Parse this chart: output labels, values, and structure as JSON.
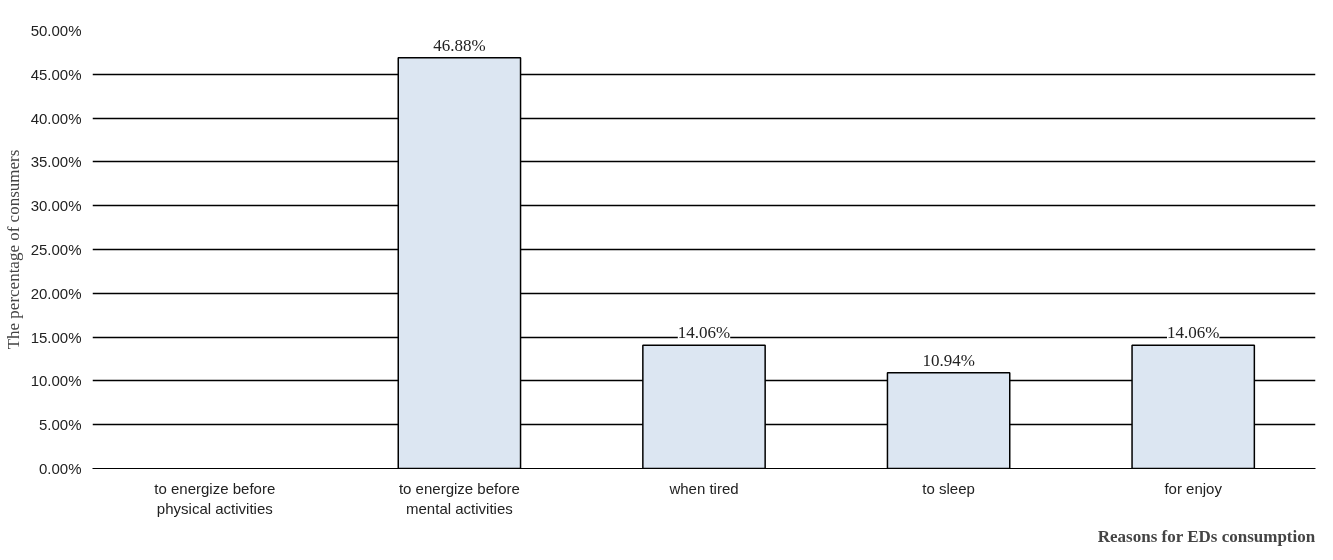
{
  "chart_data": {
    "type": "bar",
    "xlabel": "Reasons for EDs consumption",
    "ylabel": "The percentage of consumers",
    "categories": [
      "to energize before physical activities",
      "to energize before mental activities",
      "when tired",
      "to sleep",
      "for enjoy"
    ],
    "values": [
      null,
      46.88,
      14.06,
      10.94,
      14.06
    ],
    "value_labels": [
      null,
      "46.88%",
      "14.06%",
      "10.94%",
      "14.06%"
    ],
    "color": "#dce6f2",
    "ylim": [
      0,
      50
    ],
    "yticks": [
      {
        "value": 0,
        "label": "0.00%"
      },
      {
        "value": 5,
        "label": "5.00%"
      },
      {
        "value": 10,
        "label": "10.00%"
      },
      {
        "value": 15,
        "label": "15.00%"
      },
      {
        "value": 20,
        "label": "20.00%"
      },
      {
        "value": 25,
        "label": "25.00%"
      },
      {
        "value": 30,
        "label": "30.00%"
      },
      {
        "value": 35,
        "label": "35.00%"
      },
      {
        "value": 40,
        "label": "40.00%"
      },
      {
        "value": 45,
        "label": "45.00%"
      },
      {
        "value": 50,
        "label": "50.00%"
      }
    ],
    "grid": "y"
  }
}
